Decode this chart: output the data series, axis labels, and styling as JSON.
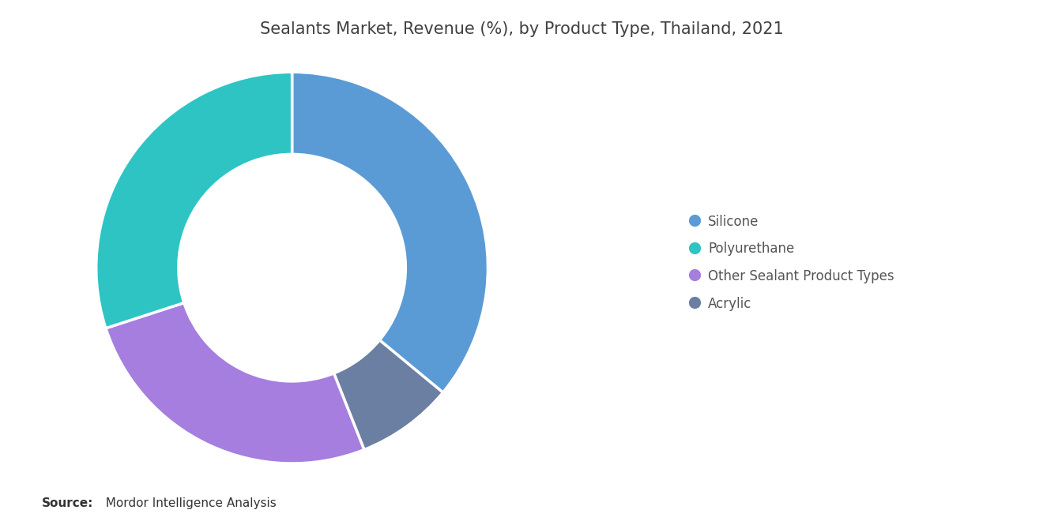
{
  "title": "Sealants Market, Revenue (%), by Product Type, Thailand, 2021",
  "segments": [
    {
      "label": "Silicone",
      "value": 36,
      "color": "#5B9BD5"
    },
    {
      "label": "Acrylic",
      "value": 8,
      "color": "#6B7FA3"
    },
    {
      "label": "Other Sealant Product Types",
      "value": 26,
      "color": "#A67EE0"
    },
    {
      "label": "Polyurethane",
      "value": 30,
      "color": "#2EC4C4"
    }
  ],
  "legend_order": [
    "Silicone",
    "Polyurethane",
    "Other Sealant Product Types",
    "Acrylic"
  ],
  "legend_colors": [
    "#5B9BD5",
    "#2EC4C4",
    "#A67EE0",
    "#6B7FA3"
  ],
  "background_color": "#FFFFFF",
  "title_fontsize": 15,
  "title_color": "#404040",
  "legend_fontsize": 12,
  "source_bold": "Source:",
  "source_normal": "  Mordor Intelligence Analysis",
  "source_fontsize": 11,
  "donut_width": 0.42,
  "start_angle": 90
}
